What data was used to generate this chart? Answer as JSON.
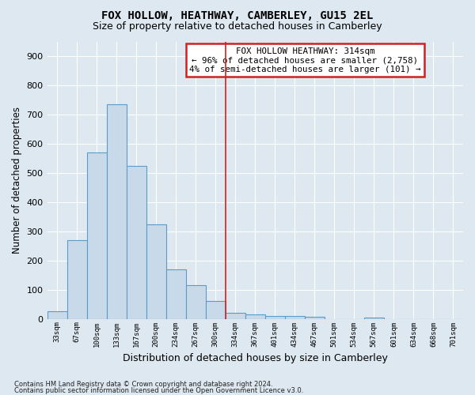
{
  "title": "FOX HOLLOW, HEATHWAY, CAMBERLEY, GU15 2EL",
  "subtitle": "Size of property relative to detached houses in Camberley",
  "xlabel": "Distribution of detached houses by size in Camberley",
  "ylabel": "Number of detached properties",
  "bar_labels": [
    "33sqm",
    "67sqm",
    "100sqm",
    "133sqm",
    "167sqm",
    "200sqm",
    "234sqm",
    "267sqm",
    "300sqm",
    "334sqm",
    "367sqm",
    "401sqm",
    "434sqm",
    "467sqm",
    "501sqm",
    "534sqm",
    "567sqm",
    "601sqm",
    "634sqm",
    "668sqm",
    "701sqm"
  ],
  "bar_values": [
    25,
    270,
    570,
    735,
    525,
    325,
    170,
    115,
    60,
    20,
    15,
    10,
    10,
    8,
    0,
    0,
    5,
    0,
    0,
    0,
    0
  ],
  "bar_color": "#c8daea",
  "bar_edgecolor": "#5b9bc8",
  "background_color": "#dde8f0",
  "grid_color": "#ffffff",
  "vline_color": "#cc2222",
  "vline_x_index": 8.5,
  "annotation_title": "FOX HOLLOW HEATHWAY: 314sqm",
  "annotation_line1": "← 96% of detached houses are smaller (2,758)",
  "annotation_line2": "4% of semi-detached houses are larger (101) →",
  "annotation_box_facecolor": "#ffffff",
  "annotation_box_edgecolor": "#cc2222",
  "ylim": [
    0,
    950
  ],
  "yticks": [
    0,
    100,
    200,
    300,
    400,
    500,
    600,
    700,
    800,
    900
  ],
  "footnote1": "Contains HM Land Registry data © Crown copyright and database right 2024.",
  "footnote2": "Contains public sector information licensed under the Open Government Licence v3.0."
}
